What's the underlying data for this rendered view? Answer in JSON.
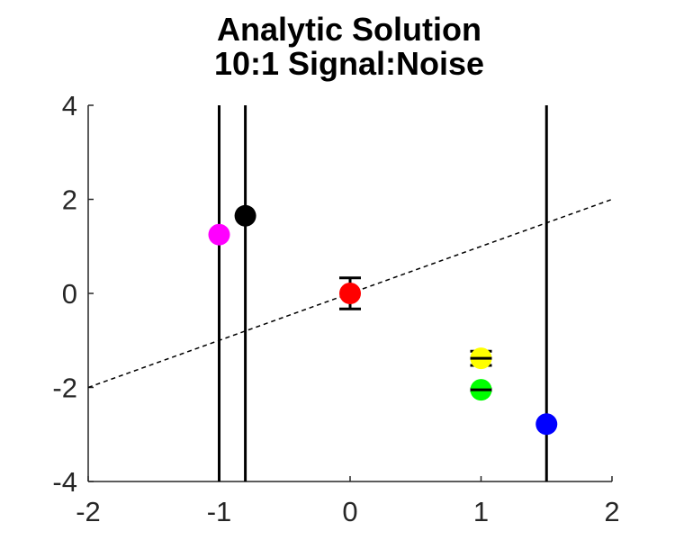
{
  "chart_data": {
    "type": "scatter",
    "title": "Analytic Solution",
    "subtitle": "10:1 Signal:Noise",
    "xlim": [
      -2,
      2
    ],
    "ylim": [
      -4,
      4
    ],
    "x_ticks": [
      "-2",
      "-1",
      "0",
      "1",
      "2"
    ],
    "y_ticks": [
      "-4",
      "-2",
      "0",
      "2",
      "4"
    ],
    "grid": false,
    "box": false,
    "reference_line": {
      "style": "dashed",
      "color": "#000000",
      "slope": 1,
      "intercept": 0,
      "x_range": [
        -2,
        2
      ]
    },
    "points": [
      {
        "x": -1.0,
        "y": 1.25,
        "color": "#ff00ff",
        "yerr": null,
        "error_type": "infinite"
      },
      {
        "x": -0.8,
        "y": 1.65,
        "color": "#000000",
        "yerr": null,
        "error_type": "infinite"
      },
      {
        "x": 0.0,
        "y": 0.0,
        "color": "#ff0000",
        "yerr": 0.33,
        "error_type": "bar"
      },
      {
        "x": 1.0,
        "y": -1.38,
        "color": "#ffff00",
        "yerr": 0.15,
        "error_type": "bar"
      },
      {
        "x": 1.0,
        "y": -2.05,
        "color": "#00ff00",
        "yerr": 0.02,
        "error_type": "bar"
      },
      {
        "x": 1.5,
        "y": -2.78,
        "color": "#0000ff",
        "yerr": null,
        "error_type": "infinite"
      }
    ]
  }
}
